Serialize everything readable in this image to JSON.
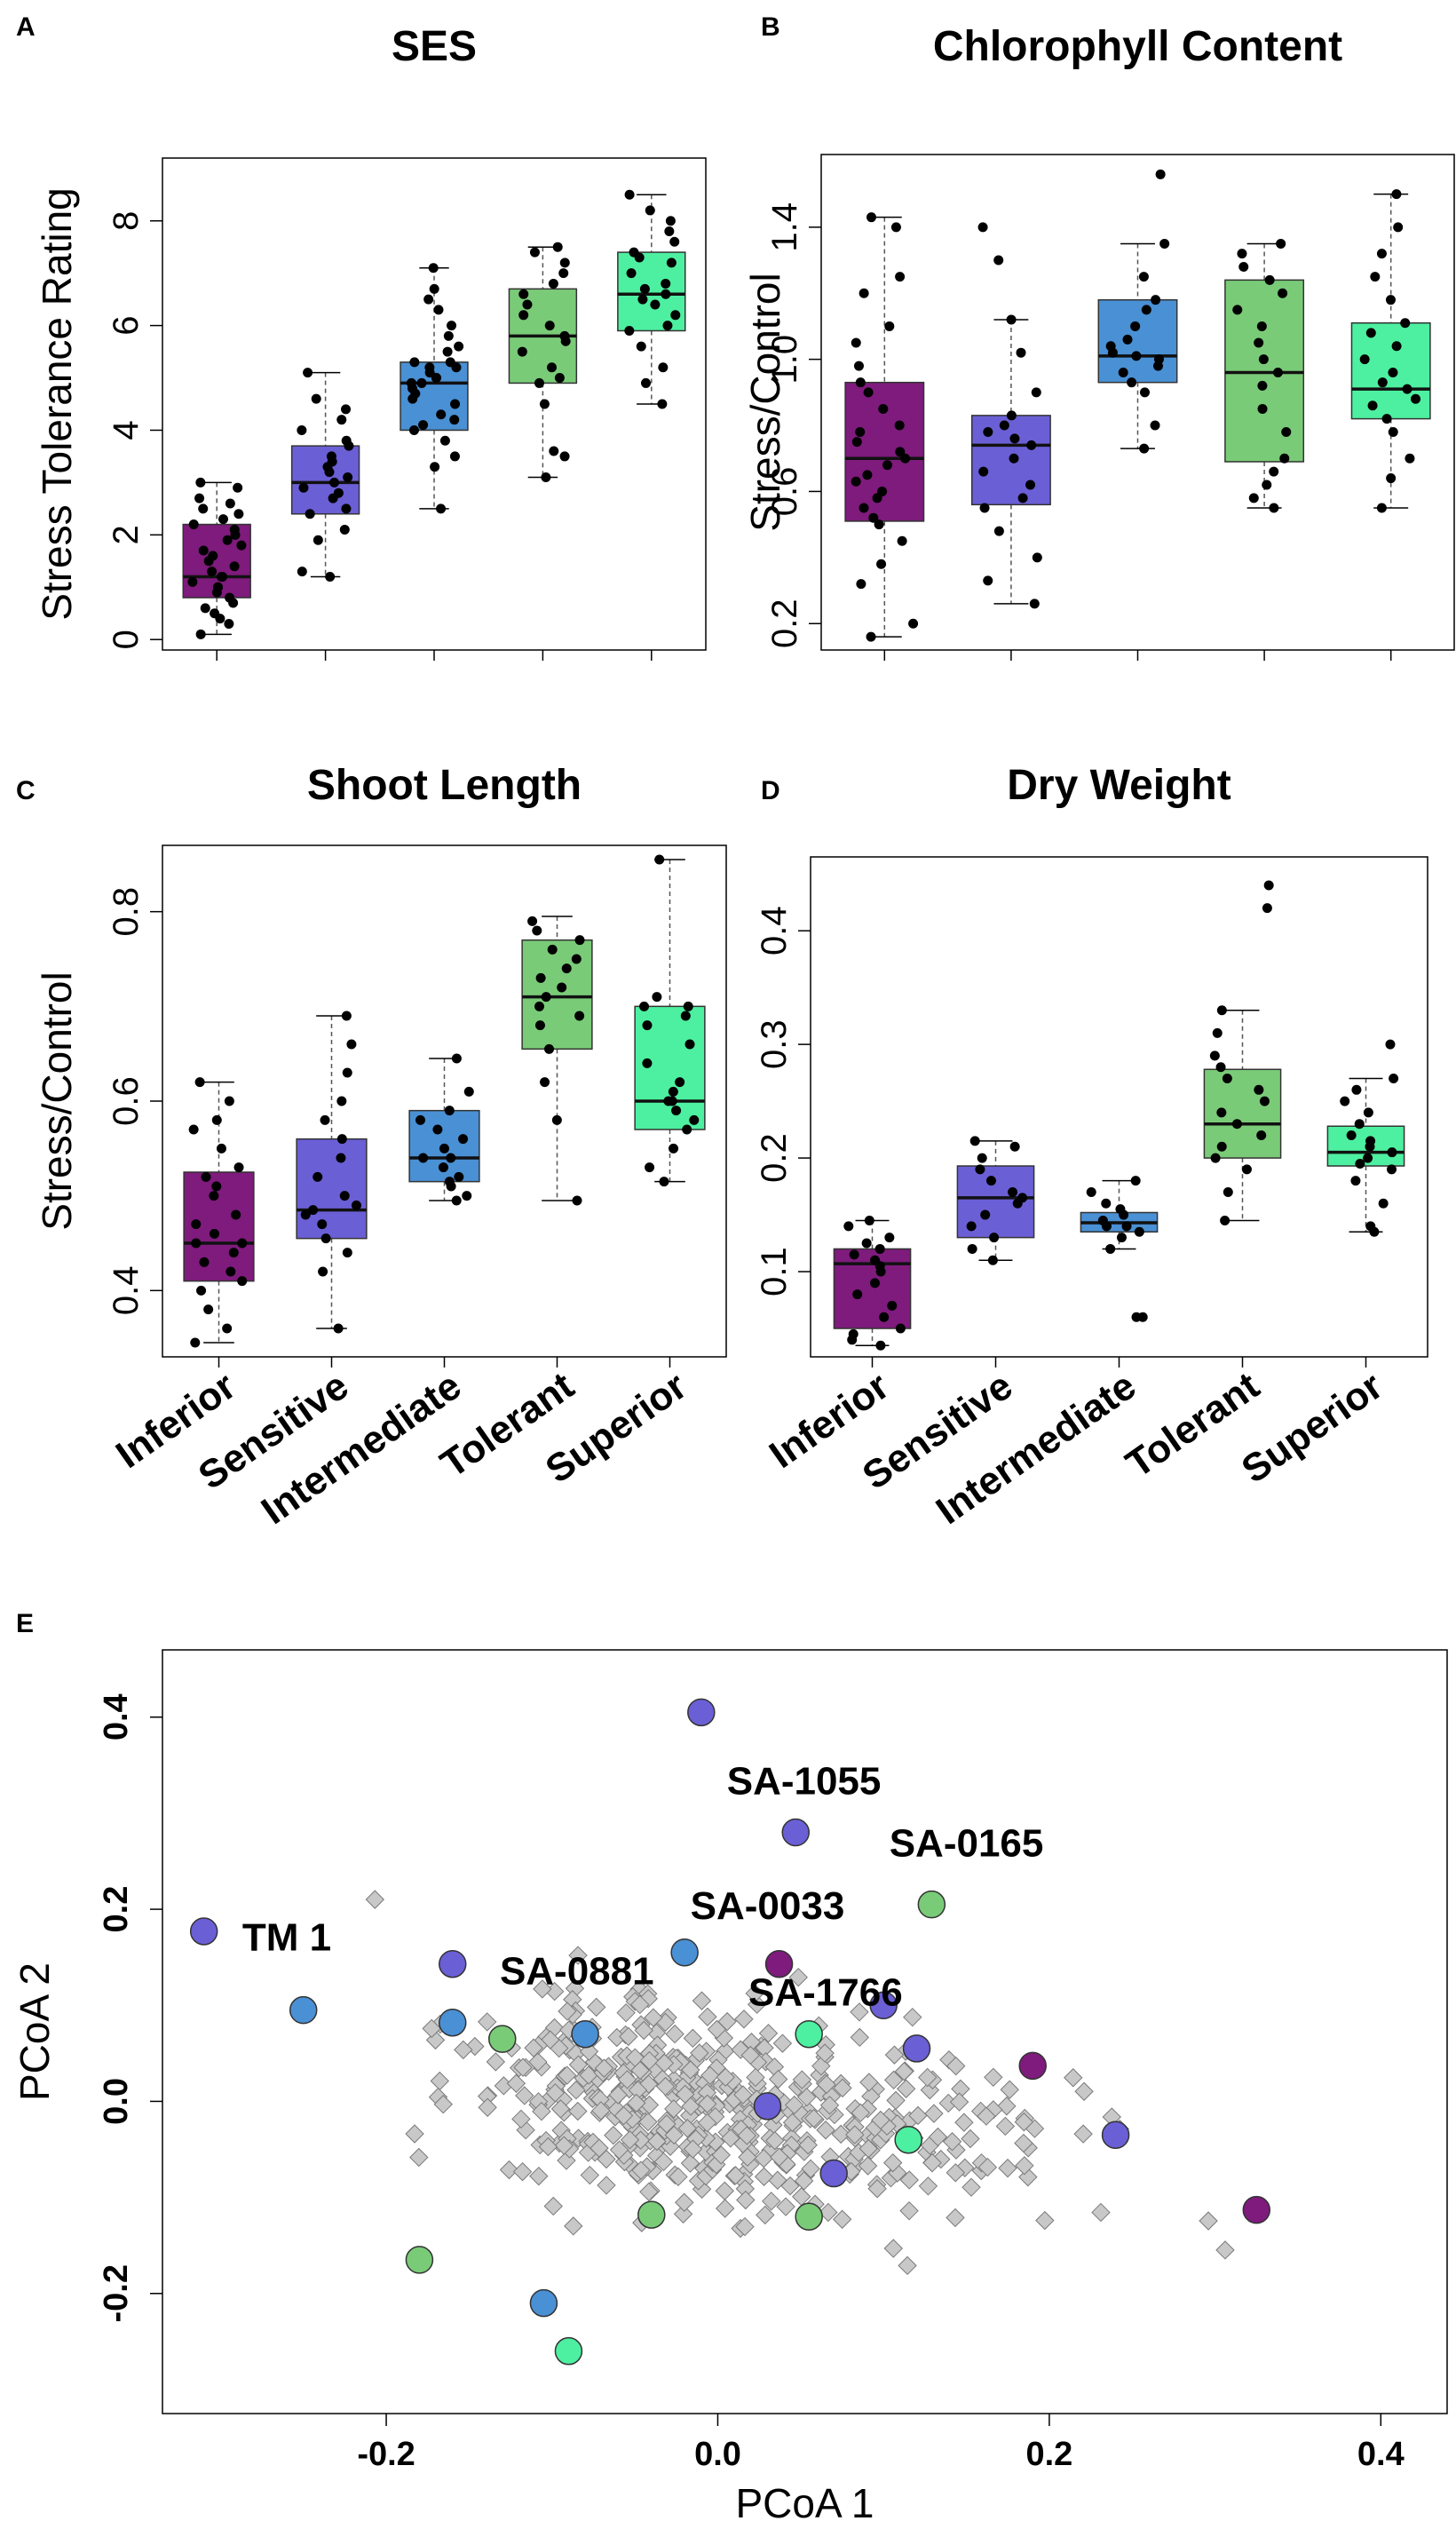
{
  "colors": {
    "inferior": "#7e1b7c",
    "sensitive": "#6b5fd6",
    "intermediate": "#4a90d4",
    "tolerant": "#7acb78",
    "superior": "#4df0a0",
    "background_point": "#c8c8c8"
  },
  "categories": [
    "Inferior",
    "Sensitive",
    "Intermediate",
    "Tolerant",
    "Superior"
  ],
  "chart_data": [
    {
      "id": "A",
      "letter": "A",
      "type": "box",
      "title": "SES",
      "ylabel": "Stress Tolerance Rating",
      "ylim": [
        -0.2,
        9.2
      ],
      "yticks": [
        0,
        2,
        4,
        6,
        8
      ],
      "ytick_labels": [
        "0",
        "2",
        "4",
        "6",
        "8"
      ],
      "boxes": [
        {
          "category": "Inferior",
          "whisker_low": 0.1,
          "q1": 0.8,
          "median": 1.2,
          "q3": 2.2,
          "whisker_high": 3.0
        },
        {
          "category": "Sensitive",
          "whisker_low": 1.2,
          "q1": 2.4,
          "median": 3.0,
          "q3": 3.7,
          "whisker_high": 5.1
        },
        {
          "category": "Intermediate",
          "whisker_low": 2.5,
          "q1": 4.0,
          "median": 4.9,
          "q3": 5.3,
          "whisker_high": 7.1
        },
        {
          "category": "Tolerant",
          "whisker_low": 3.1,
          "q1": 4.9,
          "median": 5.8,
          "q3": 6.7,
          "whisker_high": 7.5
        },
        {
          "category": "Superior",
          "whisker_low": 4.5,
          "q1": 5.9,
          "median": 6.6,
          "q3": 7.4,
          "whisker_high": 8.5
        }
      ],
      "points": [
        [
          0.1,
          0.3,
          0.4,
          0.5,
          0.6,
          0.7,
          0.8,
          0.9,
          1.0,
          1.0,
          1.1,
          1.2,
          1.2,
          1.3,
          1.4,
          1.5,
          1.6,
          1.7,
          1.8,
          1.9,
          2.0,
          2.1,
          2.2,
          2.3,
          2.4,
          2.5,
          2.6,
          2.7,
          2.9,
          3.0
        ],
        [
          1.2,
          1.3,
          1.9,
          2.1,
          2.4,
          2.5,
          2.7,
          2.8,
          2.9,
          3.0,
          3.1,
          3.2,
          3.3,
          3.4,
          3.5,
          3.7,
          3.8,
          4.0,
          4.2,
          4.4,
          4.6,
          5.1
        ],
        [
          2.5,
          3.3,
          3.5,
          3.8,
          4.0,
          4.1,
          4.2,
          4.3,
          4.5,
          4.6,
          4.7,
          4.8,
          4.9,
          4.9,
          5.0,
          5.0,
          5.1,
          5.2,
          5.2,
          5.3,
          5.3,
          5.5,
          5.6,
          5.8,
          6.0,
          6.3,
          6.5,
          6.7,
          7.1
        ],
        [
          3.1,
          3.5,
          3.6,
          4.5,
          4.9,
          5.0,
          5.2,
          5.5,
          5.7,
          5.8,
          6.0,
          6.2,
          6.4,
          6.6,
          6.8,
          7.0,
          7.2,
          7.4,
          7.5
        ],
        [
          4.5,
          4.9,
          5.2,
          5.6,
          5.9,
          6.0,
          6.2,
          6.4,
          6.5,
          6.6,
          6.7,
          6.8,
          7.0,
          7.2,
          7.3,
          7.4,
          7.6,
          7.8,
          8.0,
          8.2,
          8.5
        ]
      ]
    },
    {
      "id": "B",
      "letter": "B",
      "type": "box",
      "title": "Chlorophyll Content",
      "ylabel": "Stress/Control",
      "ylim": [
        0.12,
        1.62
      ],
      "yticks": [
        0.2,
        0.6,
        1.0,
        1.4
      ],
      "ytick_labels": [
        "0.2",
        "0.6",
        "1.0",
        "1.4"
      ],
      "boxes": [
        {
          "category": "Inferior",
          "whisker_low": 0.16,
          "q1": 0.51,
          "median": 0.7,
          "q3": 0.93,
          "whisker_high": 1.43
        },
        {
          "category": "Sensitive",
          "whisker_low": 0.26,
          "q1": 0.56,
          "median": 0.74,
          "q3": 0.83,
          "whisker_high": 1.12
        },
        {
          "category": "Intermediate",
          "whisker_low": 0.73,
          "q1": 0.93,
          "median": 1.01,
          "q3": 1.18,
          "whisker_high": 1.35
        },
        {
          "category": "Tolerant",
          "whisker_low": 0.55,
          "q1": 0.69,
          "median": 0.96,
          "q3": 1.24,
          "whisker_high": 1.35
        },
        {
          "category": "Superior",
          "whisker_low": 0.55,
          "q1": 0.82,
          "median": 0.91,
          "q3": 1.11,
          "whisker_high": 1.5
        }
      ],
      "points": [
        [
          0.16,
          0.2,
          0.32,
          0.38,
          0.45,
          0.5,
          0.52,
          0.55,
          0.58,
          0.6,
          0.63,
          0.65,
          0.68,
          0.7,
          0.72,
          0.75,
          0.78,
          0.8,
          0.85,
          0.9,
          0.93,
          0.98,
          1.05,
          1.1,
          1.2,
          1.25,
          1.4,
          1.43
        ],
        [
          0.26,
          0.33,
          0.4,
          0.48,
          0.55,
          0.58,
          0.62,
          0.66,
          0.7,
          0.74,
          0.76,
          0.78,
          0.8,
          0.83,
          0.9,
          1.02,
          1.12,
          1.3,
          1.4
        ],
        [
          0.73,
          0.8,
          0.9,
          0.93,
          0.96,
          0.98,
          1.0,
          1.01,
          1.02,
          1.04,
          1.06,
          1.1,
          1.15,
          1.18,
          1.25,
          1.35,
          1.56
        ],
        [
          0.55,
          0.58,
          0.62,
          0.66,
          0.7,
          0.78,
          0.85,
          0.92,
          0.96,
          1.0,
          1.05,
          1.1,
          1.15,
          1.2,
          1.24,
          1.28,
          1.32,
          1.35
        ],
        [
          0.55,
          0.64,
          0.7,
          0.78,
          0.82,
          0.86,
          0.88,
          0.91,
          0.93,
          0.96,
          1.0,
          1.04,
          1.08,
          1.11,
          1.18,
          1.25,
          1.32,
          1.4,
          1.5
        ]
      ]
    },
    {
      "id": "C",
      "letter": "C",
      "type": "box",
      "title": "Shoot Length",
      "ylabel": "Stress/Control",
      "ylim": [
        0.33,
        0.87
      ],
      "yticks": [
        0.4,
        0.6,
        0.8
      ],
      "ytick_labels": [
        "0.4",
        "0.6",
        "0.8"
      ],
      "boxes": [
        {
          "category": "Inferior",
          "whisker_low": 0.345,
          "q1": 0.41,
          "median": 0.45,
          "q3": 0.525,
          "whisker_high": 0.62
        },
        {
          "category": "Sensitive",
          "whisker_low": 0.36,
          "q1": 0.455,
          "median": 0.485,
          "q3": 0.56,
          "whisker_high": 0.69
        },
        {
          "category": "Intermediate",
          "whisker_low": 0.495,
          "q1": 0.515,
          "median": 0.54,
          "q3": 0.59,
          "whisker_high": 0.645
        },
        {
          "category": "Tolerant",
          "whisker_low": 0.495,
          "q1": 0.655,
          "median": 0.71,
          "q3": 0.77,
          "whisker_high": 0.795
        },
        {
          "category": "Superior",
          "whisker_low": 0.515,
          "q1": 0.57,
          "median": 0.6,
          "q3": 0.7,
          "whisker_high": 0.855
        }
      ],
      "points": [
        [
          0.345,
          0.36,
          0.38,
          0.4,
          0.41,
          0.42,
          0.43,
          0.44,
          0.45,
          0.45,
          0.46,
          0.47,
          0.48,
          0.5,
          0.51,
          0.52,
          0.53,
          0.55,
          0.57,
          0.58,
          0.6,
          0.62
        ],
        [
          0.36,
          0.42,
          0.44,
          0.455,
          0.47,
          0.48,
          0.485,
          0.49,
          0.5,
          0.52,
          0.54,
          0.56,
          0.58,
          0.6,
          0.63,
          0.66,
          0.69
        ],
        [
          0.495,
          0.5,
          0.51,
          0.515,
          0.52,
          0.53,
          0.54,
          0.54,
          0.55,
          0.56,
          0.57,
          0.58,
          0.59,
          0.61,
          0.645
        ],
        [
          0.495,
          0.58,
          0.62,
          0.655,
          0.68,
          0.69,
          0.7,
          0.71,
          0.72,
          0.73,
          0.74,
          0.75,
          0.76,
          0.77,
          0.78,
          0.79
        ],
        [
          0.515,
          0.53,
          0.55,
          0.57,
          0.58,
          0.59,
          0.6,
          0.6,
          0.61,
          0.62,
          0.64,
          0.66,
          0.68,
          0.69,
          0.7,
          0.7,
          0.71,
          0.855
        ]
      ]
    },
    {
      "id": "D",
      "letter": "D",
      "type": "box",
      "title": "Dry Weight",
      "ylabel": "",
      "ylim": [
        0.025,
        0.465
      ],
      "yticks": [
        0.1,
        0.2,
        0.3,
        0.4
      ],
      "ytick_labels": [
        "0.1",
        "0.2",
        "0.3",
        "0.4"
      ],
      "boxes": [
        {
          "category": "Inferior",
          "whisker_low": 0.035,
          "q1": 0.05,
          "median": 0.107,
          "q3": 0.12,
          "whisker_high": 0.145
        },
        {
          "category": "Sensitive",
          "whisker_low": 0.11,
          "q1": 0.13,
          "median": 0.165,
          "q3": 0.193,
          "whisker_high": 0.215
        },
        {
          "category": "Intermediate",
          "whisker_low": 0.12,
          "q1": 0.135,
          "median": 0.143,
          "q3": 0.152,
          "whisker_high": 0.18
        },
        {
          "category": "Tolerant",
          "whisker_low": 0.145,
          "q1": 0.2,
          "median": 0.23,
          "q3": 0.278,
          "whisker_high": 0.33
        },
        {
          "category": "Superior",
          "whisker_low": 0.135,
          "q1": 0.193,
          "median": 0.205,
          "q3": 0.228,
          "whisker_high": 0.27
        }
      ],
      "points": [
        [
          0.035,
          0.04,
          0.045,
          0.05,
          0.06,
          0.07,
          0.08,
          0.09,
          0.1,
          0.105,
          0.11,
          0.115,
          0.12,
          0.125,
          0.13,
          0.14,
          0.145
        ],
        [
          0.11,
          0.12,
          0.13,
          0.14,
          0.15,
          0.16,
          0.165,
          0.17,
          0.18,
          0.19,
          0.2,
          0.21,
          0.215
        ],
        [
          0.06,
          0.06,
          0.12,
          0.13,
          0.135,
          0.14,
          0.14,
          0.145,
          0.15,
          0.155,
          0.16,
          0.17,
          0.18
        ],
        [
          0.145,
          0.17,
          0.19,
          0.2,
          0.21,
          0.22,
          0.23,
          0.24,
          0.25,
          0.26,
          0.27,
          0.28,
          0.29,
          0.31,
          0.33,
          0.42,
          0.44
        ],
        [
          0.135,
          0.14,
          0.16,
          0.18,
          0.19,
          0.195,
          0.2,
          0.205,
          0.21,
          0.215,
          0.22,
          0.23,
          0.24,
          0.25,
          0.26,
          0.27,
          0.3
        ]
      ]
    },
    {
      "id": "E",
      "letter": "E",
      "type": "scatter",
      "xlabel": "PCoA 1",
      "ylabel": "PCoA 2",
      "xlim": [
        -0.335,
        0.44
      ],
      "ylim": [
        -0.325,
        0.47
      ],
      "xticks": [
        -0.2,
        0.0,
        0.2,
        0.4
      ],
      "xtick_labels": [
        "-0.2",
        "0.0",
        "0.2",
        "0.4"
      ],
      "yticks": [
        -0.2,
        0.0,
        0.2,
        0.4
      ],
      "ytick_labels": [
        "-0.2",
        "0.0",
        "0.2",
        "0.4"
      ],
      "highlighted": [
        {
          "x": -0.01,
          "y": 0.405,
          "group": "sensitive"
        },
        {
          "x": 0.047,
          "y": 0.28,
          "group": "sensitive"
        },
        {
          "x": 0.129,
          "y": 0.205,
          "group": "tolerant"
        },
        {
          "x": 0.037,
          "y": 0.143,
          "group": "inferior"
        },
        {
          "x": -0.31,
          "y": 0.177,
          "group": "sensitive"
        },
        {
          "x": -0.16,
          "y": 0.143,
          "group": "sensitive"
        },
        {
          "x": -0.02,
          "y": 0.155,
          "group": "intermediate"
        },
        {
          "x": -0.25,
          "y": 0.095,
          "group": "intermediate"
        },
        {
          "x": -0.16,
          "y": 0.082,
          "group": "intermediate"
        },
        {
          "x": -0.13,
          "y": 0.065,
          "group": "tolerant"
        },
        {
          "x": -0.08,
          "y": 0.07,
          "group": "intermediate"
        },
        {
          "x": 0.055,
          "y": 0.07,
          "group": "superior"
        },
        {
          "x": 0.1,
          "y": 0.1,
          "group": "sensitive"
        },
        {
          "x": 0.12,
          "y": 0.055,
          "group": "sensitive"
        },
        {
          "x": 0.19,
          "y": 0.037,
          "group": "inferior"
        },
        {
          "x": 0.03,
          "y": -0.005,
          "group": "sensitive"
        },
        {
          "x": 0.115,
          "y": -0.04,
          "group": "superior"
        },
        {
          "x": 0.07,
          "y": -0.075,
          "group": "sensitive"
        },
        {
          "x": 0.24,
          "y": -0.035,
          "group": "sensitive"
        },
        {
          "x": 0.325,
          "y": -0.113,
          "group": "inferior"
        },
        {
          "x": -0.04,
          "y": -0.118,
          "group": "tolerant"
        },
        {
          "x": 0.055,
          "y": -0.12,
          "group": "tolerant"
        },
        {
          "x": -0.18,
          "y": -0.165,
          "group": "tolerant"
        },
        {
          "x": -0.105,
          "y": -0.21,
          "group": "intermediate"
        },
        {
          "x": -0.09,
          "y": -0.26,
          "group": "superior"
        }
      ],
      "labels": [
        {
          "text": "SA-1055",
          "x": 0.052,
          "y": 0.32
        },
        {
          "text": "SA-0165",
          "x": 0.15,
          "y": 0.255
        },
        {
          "text": "SA-0033",
          "x": 0.03,
          "y": 0.19
        },
        {
          "text": "TM 1",
          "x": -0.26,
          "y": 0.157
        },
        {
          "text": "SA-0881",
          "x": -0.085,
          "y": 0.122
        },
        {
          "text": "SA-1766",
          "x": 0.065,
          "y": 0.1
        }
      ]
    }
  ]
}
